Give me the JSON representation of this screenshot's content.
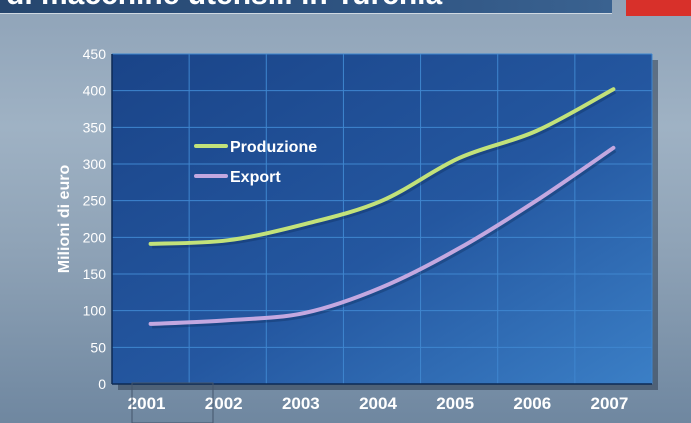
{
  "slide": {
    "title": "di macchine utensili in Turchia"
  },
  "chart_data": {
    "type": "line",
    "x": [
      2001,
      2002,
      2003,
      2004,
      2005,
      2006,
      2007
    ],
    "series": [
      {
        "name": "Produzione",
        "values": [
          191,
          196,
          218,
          250,
          308,
          345,
          402
        ],
        "color": "#c2e27a"
      },
      {
        "name": "Export",
        "values": [
          82,
          87,
          97,
          132,
          185,
          250,
          322
        ],
        "color": "#c3a8e0"
      }
    ],
    "xlabel": "",
    "ylabel": "Milioni di euro",
    "ylim": [
      0,
      450
    ],
    "yticks": [
      0,
      50,
      100,
      150,
      200,
      250,
      300,
      350,
      400,
      450
    ],
    "grid": true,
    "legend_position": "top-left",
    "colors": {
      "plot_background": "#1e4d94",
      "grid": "#3f86cf",
      "text": "#ffffff"
    }
  }
}
